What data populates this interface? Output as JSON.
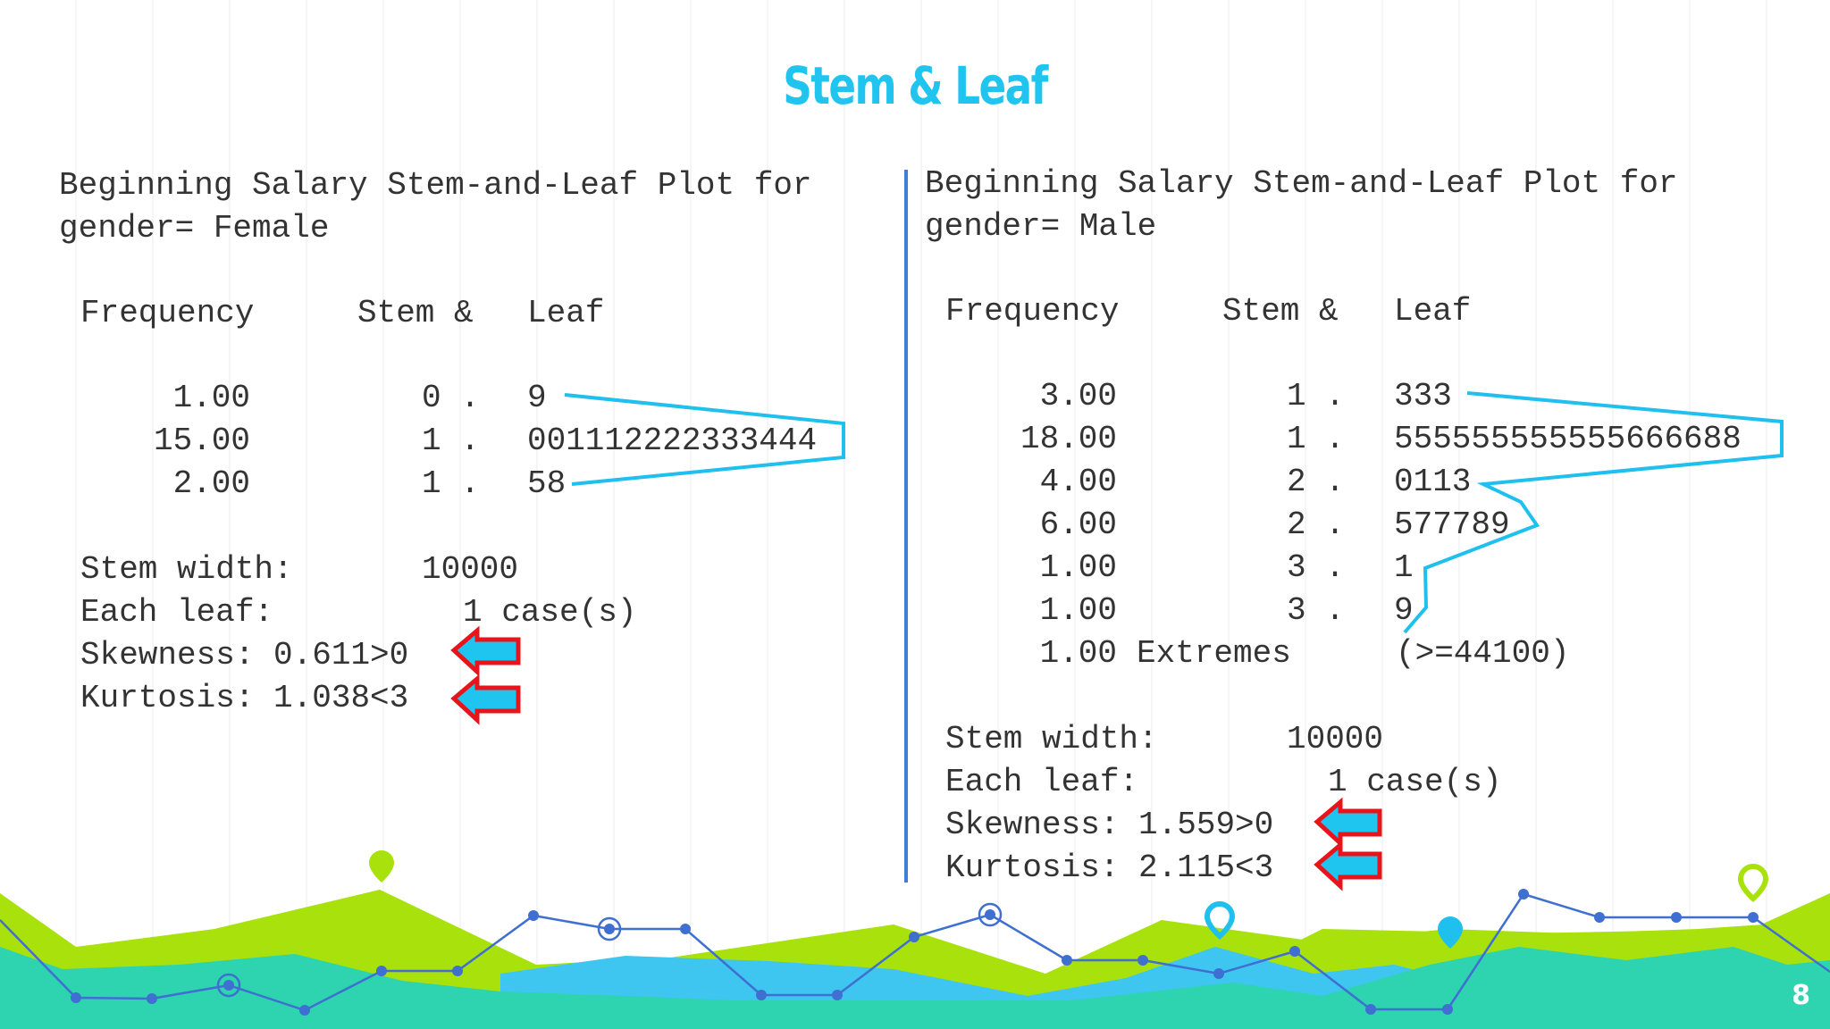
{
  "title": "Stem & Leaf",
  "page_number": "8",
  "left_panel": {
    "heading_line1": "Beginning Salary Stem-and-Leaf Plot for",
    "heading_line2": "gender= Female",
    "col_frequency": "Frequency",
    "col_stem": "Stem &",
    "col_leaf": "Leaf",
    "rows": [
      {
        "freq": "1.00",
        "stem": "0 .",
        "leaf": "9"
      },
      {
        "freq": "15.00",
        "stem": "1 .",
        "leaf": "001112222333444"
      },
      {
        "freq": "2.00",
        "stem": "1 .",
        "leaf": "58"
      }
    ],
    "stem_width_label": "Stem width:",
    "stem_width_value": "10000",
    "each_leaf_label": "Each leaf:",
    "each_leaf_value": "1 case(s)",
    "skewness": "Skewness: 0.611>0",
    "kurtosis": "Kurtosis: 1.038<3"
  },
  "right_panel": {
    "heading_line1": "Beginning Salary Stem-and-Leaf Plot for",
    "heading_line2": "gender= Male",
    "col_frequency": "Frequency",
    "col_stem": "Stem &",
    "col_leaf": "Leaf",
    "rows": [
      {
        "freq": "3.00",
        "stem": "1 .",
        "leaf": "333"
      },
      {
        "freq": "18.00",
        "stem": "1 .",
        "leaf": "555555555555666688"
      },
      {
        "freq": "4.00",
        "stem": "2 .",
        "leaf": "0113"
      },
      {
        "freq": "6.00",
        "stem": "2 .",
        "leaf": "577789"
      },
      {
        "freq": "1.00",
        "stem": "3 .",
        "leaf": "1"
      },
      {
        "freq": "1.00",
        "stem": "3 .",
        "leaf": "9"
      }
    ],
    "extremes_freq": "1.00",
    "extremes_label": "Extremes",
    "extremes_value": "(>=44100)",
    "stem_width_label": "Stem width:",
    "stem_width_value": "10000",
    "each_leaf_label": "Each leaf:",
    "each_leaf_value": "1 case(s)",
    "skewness": "Skewness: 1.559>0",
    "kurtosis": "Kurtosis: 2.115<3"
  },
  "colors": {
    "title": "#1fc5ee",
    "outline": "#1fc0ee",
    "divider": "#3d7fd6",
    "arrow_fill": "#1fc5ee",
    "arrow_stroke": "#e8141b",
    "lime": "#a8e10c",
    "teal": "#2ed3b0",
    "sky": "#3ec6f0",
    "line": "#3f6fd0"
  }
}
